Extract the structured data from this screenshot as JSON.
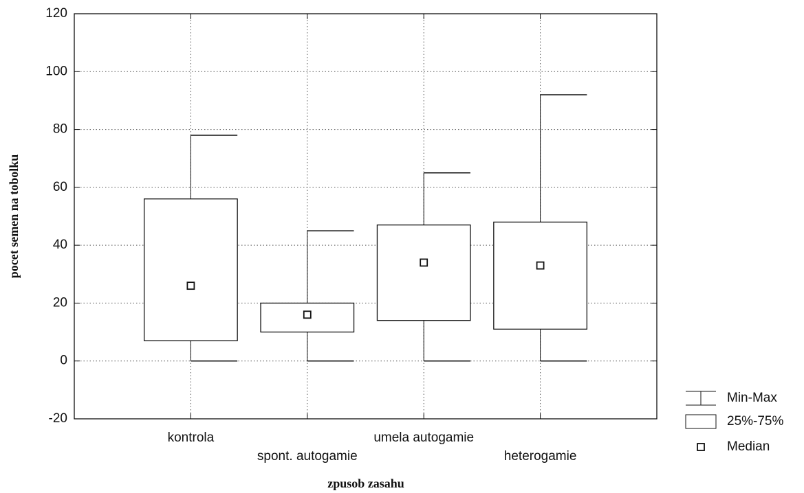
{
  "chart_data": {
    "type": "box",
    "x_label": "zpusob zasahu",
    "y_label": "pocet semen na tobolku",
    "categories": [
      "kontrola",
      "spont. autogamie",
      "umela autogamie",
      "heterogamie"
    ],
    "min": [
      0,
      0,
      0,
      0
    ],
    "q1": [
      7,
      10,
      14,
      11
    ],
    "median": [
      26,
      16,
      34,
      33
    ],
    "q3": [
      56,
      20,
      47,
      48
    ],
    "max": [
      78,
      45,
      65,
      92
    ],
    "legend": [
      "Min-Max",
      "25%-75%",
      "Median"
    ],
    "ylim": [
      -20,
      120
    ],
    "yticks": [
      -20,
      0,
      20,
      40,
      60,
      80,
      100,
      120
    ],
    "grid": true
  }
}
